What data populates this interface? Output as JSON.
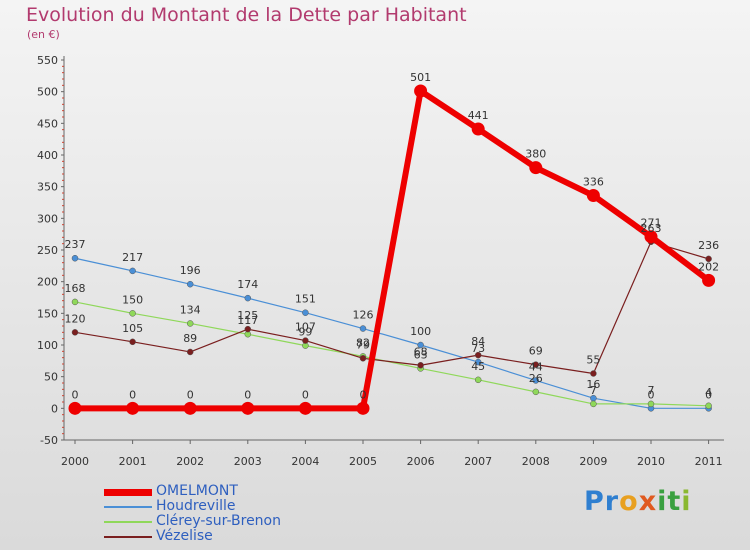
{
  "chart_data": {
    "type": "line",
    "title": "Evolution du Montant de la Dette par Habitant",
    "subtitle": "(en €)",
    "xlabel": "",
    "ylabel": "",
    "ylim": [
      -50,
      550
    ],
    "yticks": [
      -50,
      0,
      50,
      100,
      150,
      200,
      250,
      300,
      350,
      400,
      450,
      500,
      550
    ],
    "categories": [
      "2000",
      "2001",
      "2002",
      "2003",
      "2004",
      "2005",
      "2006",
      "2007",
      "2008",
      "2009",
      "2010",
      "2011"
    ],
    "grid": false,
    "legend_position": "bottom-left",
    "series": [
      {
        "name": "Houdreville",
        "color": "#4a8fd6",
        "values": [
          237,
          217,
          196,
          174,
          151,
          126,
          100,
          73,
          44,
          16,
          0,
          0
        ]
      },
      {
        "name": "Clérey-sur-Brenon",
        "color": "#8fd85a",
        "values": [
          168,
          150,
          134,
          117,
          99,
          82,
          63,
          45,
          26,
          7,
          7,
          4
        ]
      },
      {
        "name": "Vézelise",
        "color": "#7a1f1f",
        "values": [
          120,
          105,
          89,
          125,
          107,
          79,
          68,
          84,
          69,
          55,
          263,
          236
        ]
      },
      {
        "name": "OMELMONT",
        "color": "#ee0000",
        "values": [
          0,
          0,
          0,
          0,
          0,
          0,
          501,
          441,
          380,
          336,
          271,
          202
        ]
      }
    ]
  },
  "legend_order": [
    "OMELMONT",
    "Houdreville",
    "Clérey-sur-Brenon",
    "Vézelise"
  ],
  "brand": {
    "text": "Proxiti",
    "letters": [
      "P",
      "r",
      "o",
      "x",
      "i",
      "t",
      "i"
    ],
    "colors": [
      "#2f7fd0",
      "#2f7fd0",
      "#e8a020",
      "#e05a20",
      "#3aa040",
      "#3aa040",
      "#8ab830"
    ]
  }
}
